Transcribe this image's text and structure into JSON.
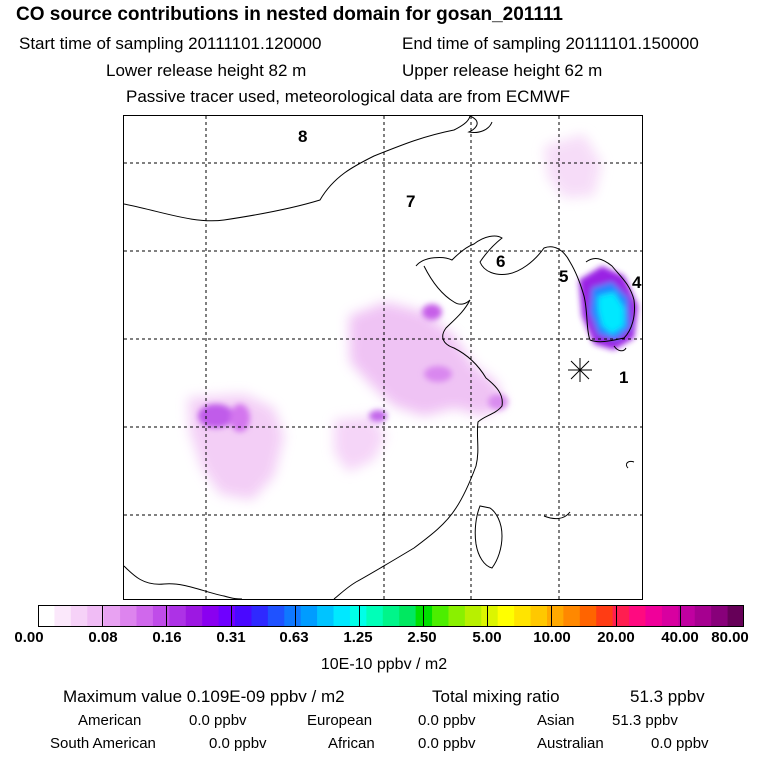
{
  "header": {
    "title": "CO  source contributions in nested domain for gosan_201111",
    "start_time": "Start time of sampling 20111101.120000",
    "end_time": "End time of sampling 20111101.150000",
    "lower_release": "Lower release height   82 m",
    "upper_release": "Upper release height   62 m",
    "tracer_note": "Passive tracer used, meteorological data are from ECMWF"
  },
  "map": {
    "region_labels": [
      "8",
      "7",
      "6",
      "5",
      "4",
      "1"
    ]
  },
  "colorbar": {
    "colors": [
      "#ffffff",
      "#fbe8fb",
      "#f6d2f8",
      "#f0bcf5",
      "#e8a2f2",
      "#dd84ee",
      "#d068ec",
      "#c04ce9",
      "#ad32e6",
      "#9d18e2",
      "#8a00f0",
      "#6f00ff",
      "#4a08ff",
      "#2f29ff",
      "#1f52ff",
      "#0f78ff",
      "#009cff",
      "#00c4ff",
      "#00e8ff",
      "#00ffe8",
      "#00ffb8",
      "#00f58a",
      "#00e860",
      "#00e000",
      "#4cee00",
      "#8af000",
      "#b8f000",
      "#dcf500",
      "#ffff00",
      "#ffe400",
      "#ffc800",
      "#ffa800",
      "#ff8800",
      "#ff6400",
      "#ff3c14",
      "#ff1e50",
      "#ff0a80",
      "#f0009a",
      "#d800a0",
      "#c000a0",
      "#a60090",
      "#88007a",
      "#660058"
    ],
    "ticks": [
      "0.00",
      "0.08",
      "0.16",
      "0.31",
      "0.63",
      "1.25",
      "2.50",
      "5.00",
      "10.00",
      "20.00",
      "40.00",
      "80.00"
    ],
    "unit": "10E-10 ppbv / m2"
  },
  "stats": {
    "max_value": "Maximum value  0.109E-09 ppbv / m2",
    "total_label": "Total mixing ratio",
    "total_value": "51.3 ppbv"
  },
  "regions": {
    "american_label": "American",
    "american_value": "0.0 ppbv",
    "european_label": "European",
    "european_value": "0.0 ppbv",
    "asian_label": "Asian",
    "asian_value": "51.3 ppbv",
    "south_american_label": "South American",
    "south_american_value": "0.0 ppbv",
    "african_label": "African",
    "african_value": "0.0 ppbv",
    "australian_label": "Australian",
    "australian_value": "0.0 ppbv"
  }
}
